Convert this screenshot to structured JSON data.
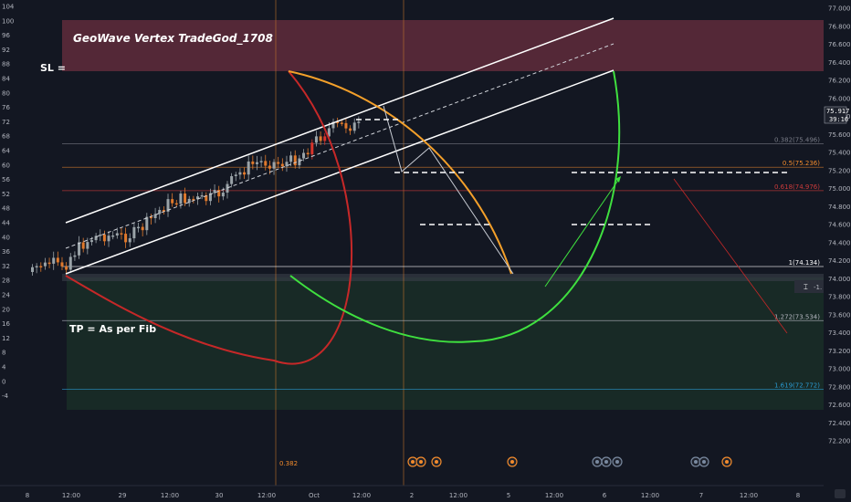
{
  "chart_data": {
    "type": "candlestick",
    "title": "GeoWave Vertex TradeGod_1708",
    "annotations": {
      "sl": "SL =",
      "tp": "TP =  As per Fib",
      "vline_label": "0.382"
    },
    "left_axis": {
      "ticks": [
        "104",
        "100",
        "96",
        "92",
        "88",
        "84",
        "80",
        "76",
        "72",
        "68",
        "64",
        "60",
        "56",
        "52",
        "48",
        "44",
        "40",
        "36",
        "32",
        "28",
        "24",
        "20",
        "16",
        "12",
        "8",
        "4",
        "0",
        "-4"
      ]
    },
    "right_axis": {
      "ticks": [
        "77.000",
        "76.800",
        "76.600",
        "76.400",
        "76.200",
        "76.000",
        "75.800",
        "75.600",
        "75.400",
        "75.200",
        "75.000",
        "74.800",
        "74.600",
        "74.400",
        "74.200",
        "74.000",
        "73.800",
        "73.600",
        "73.400",
        "73.200",
        "73.000",
        "72.800",
        "72.600",
        "72.400",
        "72.200"
      ]
    },
    "x_ticks": [
      "8",
      "12:00",
      "29",
      "12:00",
      "30",
      "12:00",
      "Oct",
      "12:00",
      "2",
      "12:00",
      "5",
      "12:00",
      "6",
      "12:00",
      "7",
      "12:00",
      "8"
    ],
    "current_price": {
      "value": "75.917",
      "countdown": "39:16"
    },
    "fib_levels": [
      {
        "label": "0.382(75.496)",
        "price": 75.496,
        "color": "#787b86"
      },
      {
        "label": "0.5(75.236)",
        "price": 75.236,
        "color": "#f28b2c"
      },
      {
        "label": "0.618(74.976)",
        "price": 74.976,
        "color": "#cc3b3b"
      },
      {
        "label": "1(74.134)",
        "price": 74.134,
        "color": "#ffffff"
      },
      {
        "label": "1.272(73.534)",
        "price": 73.534,
        "color": "#b2b5be"
      },
      {
        "label": "1.619(72.772)",
        "price": 72.772,
        "color": "#2a9ad1"
      }
    ],
    "colors": {
      "up": "#9aa3a8",
      "down": "#e0792c",
      "channel": "#ffffff",
      "red_arc": "#c62828",
      "orange_arc": "#f4a02a",
      "green_arc": "#3fe03f",
      "sl_zone": "#6b2f3f",
      "tp_zone": "#1d3a2a"
    }
  }
}
